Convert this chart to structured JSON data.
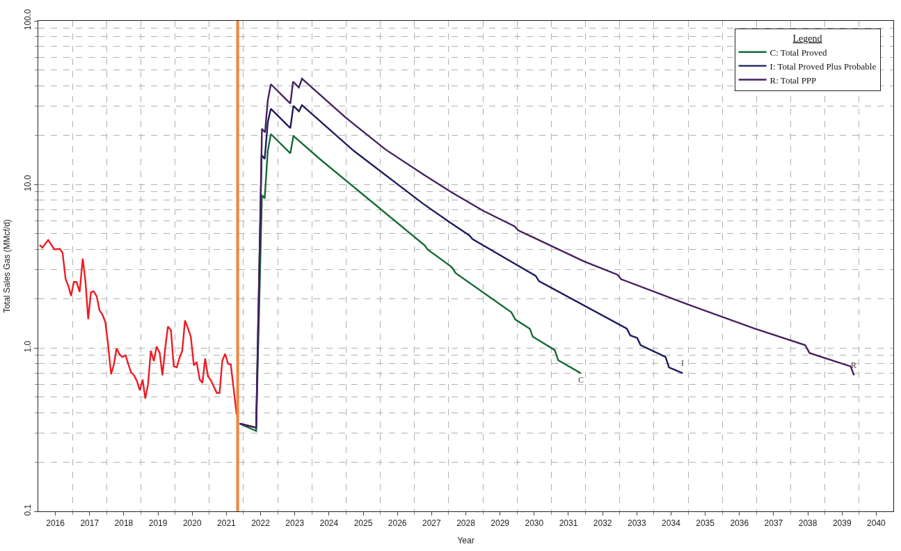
{
  "chart_data": {
    "type": "line",
    "xlabel": "Year",
    "ylabel": "Total Sales Gas (MMcf/d)",
    "legend_title": "Legend",
    "legend": "top right",
    "grid": true,
    "log": "y",
    "line_style": "solid",
    "marker": "none",
    "xlim": [
      2016,
      2041
    ],
    "ylim": [
      0.1,
      100
    ],
    "xticks": [
      {
        "value": 2016.5,
        "label": "2016"
      },
      {
        "value": 2017.5,
        "label": "2017"
      },
      {
        "value": 2018.5,
        "label": "2018"
      },
      {
        "value": 2019.5,
        "label": "2019"
      },
      {
        "value": 2020.5,
        "label": "2020"
      },
      {
        "value": 2021.5,
        "label": "2021"
      },
      {
        "value": 2022.5,
        "label": "2022"
      },
      {
        "value": 2023.5,
        "label": "2023"
      },
      {
        "value": 2024.5,
        "label": "2024"
      },
      {
        "value": 2025.5,
        "label": "2025"
      },
      {
        "value": 2026.5,
        "label": "2026"
      },
      {
        "value": 2027.5,
        "label": "2027"
      },
      {
        "value": 2028.5,
        "label": "2028"
      },
      {
        "value": 2029.5,
        "label": "2029"
      },
      {
        "value": 2030.5,
        "label": "2030"
      },
      {
        "value": 2031.5,
        "label": "2031"
      },
      {
        "value": 2032.5,
        "label": "2032"
      },
      {
        "value": 2033.5,
        "label": "2033"
      },
      {
        "value": 2034.5,
        "label": "2034"
      },
      {
        "value": 2035.5,
        "label": "2035"
      },
      {
        "value": 2036.5,
        "label": "2036"
      },
      {
        "value": 2037.5,
        "label": "2037"
      },
      {
        "value": 2038.5,
        "label": "2038"
      },
      {
        "value": 2039.5,
        "label": "2039"
      },
      {
        "value": 2040.5,
        "label": "2040"
      },
      {
        "value": 2017,
        "label": null
      },
      {
        "value": 2018,
        "label": null
      },
      {
        "value": 2019,
        "label": null
      },
      {
        "value": 2020,
        "label": null
      },
      {
        "value": 2021,
        "label": null
      },
      {
        "value": 2022,
        "label": null
      },
      {
        "value": 2023,
        "label": null
      },
      {
        "value": 2024,
        "label": null
      },
      {
        "value": 2025,
        "label": null
      },
      {
        "value": 2026,
        "label": null
      },
      {
        "value": 2027,
        "label": null
      },
      {
        "value": 2028,
        "label": null
      },
      {
        "value": 2029,
        "label": null
      },
      {
        "value": 2030,
        "label": null
      },
      {
        "value": 2031,
        "label": null
      },
      {
        "value": 2032,
        "label": null
      },
      {
        "value": 2033,
        "label": null
      },
      {
        "value": 2034,
        "label": null
      },
      {
        "value": 2035,
        "label": null
      },
      {
        "value": 2036,
        "label": null
      },
      {
        "value": 2037,
        "label": null
      },
      {
        "value": 2038,
        "label": null
      },
      {
        "value": 2039,
        "label": null
      },
      {
        "value": 2040,
        "label": null
      }
    ],
    "yticks": [
      {
        "value": 0.1,
        "label": "0.1"
      },
      {
        "value": 1,
        "label": "1.0"
      },
      {
        "value": 10,
        "label": "10.0"
      },
      {
        "value": 100,
        "label": "100.0"
      },
      {
        "value": 0.2,
        "label": null
      },
      {
        "value": 0.3,
        "label": null
      },
      {
        "value": 0.4,
        "label": null
      },
      {
        "value": 0.5,
        "label": null
      },
      {
        "value": 0.6,
        "label": null
      },
      {
        "value": 0.7,
        "label": null
      },
      {
        "value": 0.8,
        "label": null
      },
      {
        "value": 0.9,
        "label": null
      },
      {
        "value": 2,
        "label": null
      },
      {
        "value": 3,
        "label": null
      },
      {
        "value": 4,
        "label": null
      },
      {
        "value": 5,
        "label": null
      },
      {
        "value": 6,
        "label": null
      },
      {
        "value": 7,
        "label": null
      },
      {
        "value": 8,
        "label": null
      },
      {
        "value": 9,
        "label": null
      },
      {
        "value": 20,
        "label": null
      },
      {
        "value": 30,
        "label": null
      },
      {
        "value": 40,
        "label": null
      },
      {
        "value": 50,
        "label": null
      },
      {
        "value": 60,
        "label": null
      },
      {
        "value": 70,
        "label": null
      },
      {
        "value": 80,
        "label": null
      },
      {
        "value": 90,
        "label": null
      }
    ],
    "ref_lines": [
      {
        "axis": "x",
        "value": 2021.83,
        "color": "#f0843c"
      }
    ],
    "annotations": [
      {
        "text": "C",
        "x": 2031.86,
        "y": 0.7
      },
      {
        "text": "I",
        "x": 2034.84,
        "y": 0.7
      },
      {
        "text": "R",
        "x": 2039.85,
        "y": 0.68
      }
    ],
    "series": [
      {
        "color": "#ed1c24",
        "x": [
          2016.04,
          2016.12,
          2016.29,
          2016.47,
          2016.63,
          2016.71,
          2016.8,
          2016.88,
          2016.96,
          2017.04,
          2017.12,
          2017.21,
          2017.3,
          2017.38,
          2017.46,
          2017.54,
          2017.62,
          2017.71,
          2017.79,
          2017.88,
          2017.96,
          2018.04,
          2018.13,
          2018.21,
          2018.29,
          2018.38,
          2018.46,
          2018.55,
          2018.63,
          2018.71,
          2018.8,
          2018.88,
          2018.97,
          2019.05,
          2019.13,
          2019.21,
          2019.29,
          2019.38,
          2019.46,
          2019.55,
          2019.63,
          2019.71,
          2019.79,
          2019.88,
          2019.96,
          2020.05,
          2020.13,
          2020.21,
          2020.29,
          2020.38,
          2020.46,
          2020.55,
          2020.63,
          2020.72,
          2020.8,
          2020.88,
          2020.96,
          2021.05,
          2021.13,
          2021.22,
          2021.3,
          2021.38,
          2021.46,
          2021.55,
          2021.63,
          2021.8
        ],
        "values": [
          4.26,
          4.1,
          4.56,
          4.0,
          4.03,
          3.82,
          2.63,
          2.39,
          2.08,
          2.53,
          2.53,
          2.2,
          3.52,
          2.55,
          1.5,
          2.19,
          2.22,
          2.06,
          1.7,
          1.59,
          1.44,
          1.05,
          0.69,
          0.79,
          0.99,
          0.91,
          0.88,
          0.9,
          0.8,
          0.71,
          0.68,
          0.63,
          0.55,
          0.64,
          0.49,
          0.6,
          0.96,
          0.83,
          1.02,
          0.93,
          0.68,
          0.99,
          1.35,
          1.28,
          0.77,
          0.76,
          0.87,
          0.96,
          1.47,
          1.31,
          1.17,
          0.78,
          0.82,
          0.64,
          0.61,
          0.86,
          0.67,
          0.63,
          0.58,
          0.53,
          0.53,
          0.83,
          0.92,
          0.8,
          0.79,
          0.39
        ]
      },
      {
        "name": "C: Total Proved",
        "color": "#156a35",
        "x": [
          2021.89,
          2022.37,
          2022.54,
          2022.62,
          2022.71,
          2022.8,
          2023.37,
          2023.46,
          2024.23,
          2027.3,
          2027.38,
          2028.06,
          2028.12,
          2028.2,
          2029.83,
          2029.95,
          2030.37,
          2030.46,
          2031.1,
          2031.2,
          2031.86
        ],
        "values": [
          0.344,
          0.31,
          8.6,
          8.2,
          16.0,
          20.3,
          15.5,
          19.8,
          14.3,
          4.23,
          4.0,
          3.15,
          3.06,
          2.87,
          1.65,
          1.49,
          1.31,
          1.17,
          0.97,
          0.84,
          0.7
        ]
      },
      {
        "name": "I: Total Proved Plus Probable",
        "color": "#1c1c5e",
        "x": [
          2021.89,
          2022.37,
          2022.53,
          2022.62,
          2022.71,
          2022.8,
          2023.37,
          2023.46,
          2023.62,
          2023.71,
          2025.23,
          2027.26,
          2028.06,
          2028.6,
          2028.7,
          2030.54,
          2030.64,
          2033.21,
          2033.31,
          2033.51,
          2033.61,
          2034.34,
          2034.44,
          2034.84
        ],
        "values": [
          0.344,
          0.325,
          15.1,
          14.3,
          24.0,
          29.0,
          22.1,
          30.2,
          28.0,
          30.5,
          16.0,
          7.59,
          5.8,
          4.88,
          4.62,
          2.76,
          2.56,
          1.31,
          1.19,
          1.15,
          1.04,
          0.88,
          0.76,
          0.7
        ]
      },
      {
        "name": "R: Total PPP",
        "color": "#46205f",
        "x": [
          2021.89,
          2022.37,
          2022.54,
          2022.63,
          2022.71,
          2022.8,
          2023.37,
          2023.45,
          2023.62,
          2023.71,
          2024.98,
          2026.16,
          2027.26,
          2028.06,
          2029.0,
          2029.93,
          2030.03,
          2031.94,
          2032.94,
          2033.04,
          2034.94,
          2036.95,
          2038.42,
          2038.55,
          2039.75,
          2039.85
        ],
        "values": [
          0.344,
          0.325,
          21.9,
          20.8,
          32.6,
          41.0,
          31.2,
          42.5,
          39.1,
          44.3,
          25.7,
          16.3,
          11.5,
          9.0,
          6.91,
          5.53,
          5.24,
          3.39,
          2.8,
          2.63,
          1.86,
          1.31,
          1.04,
          0.93,
          0.77,
          0.68
        ]
      }
    ]
  }
}
